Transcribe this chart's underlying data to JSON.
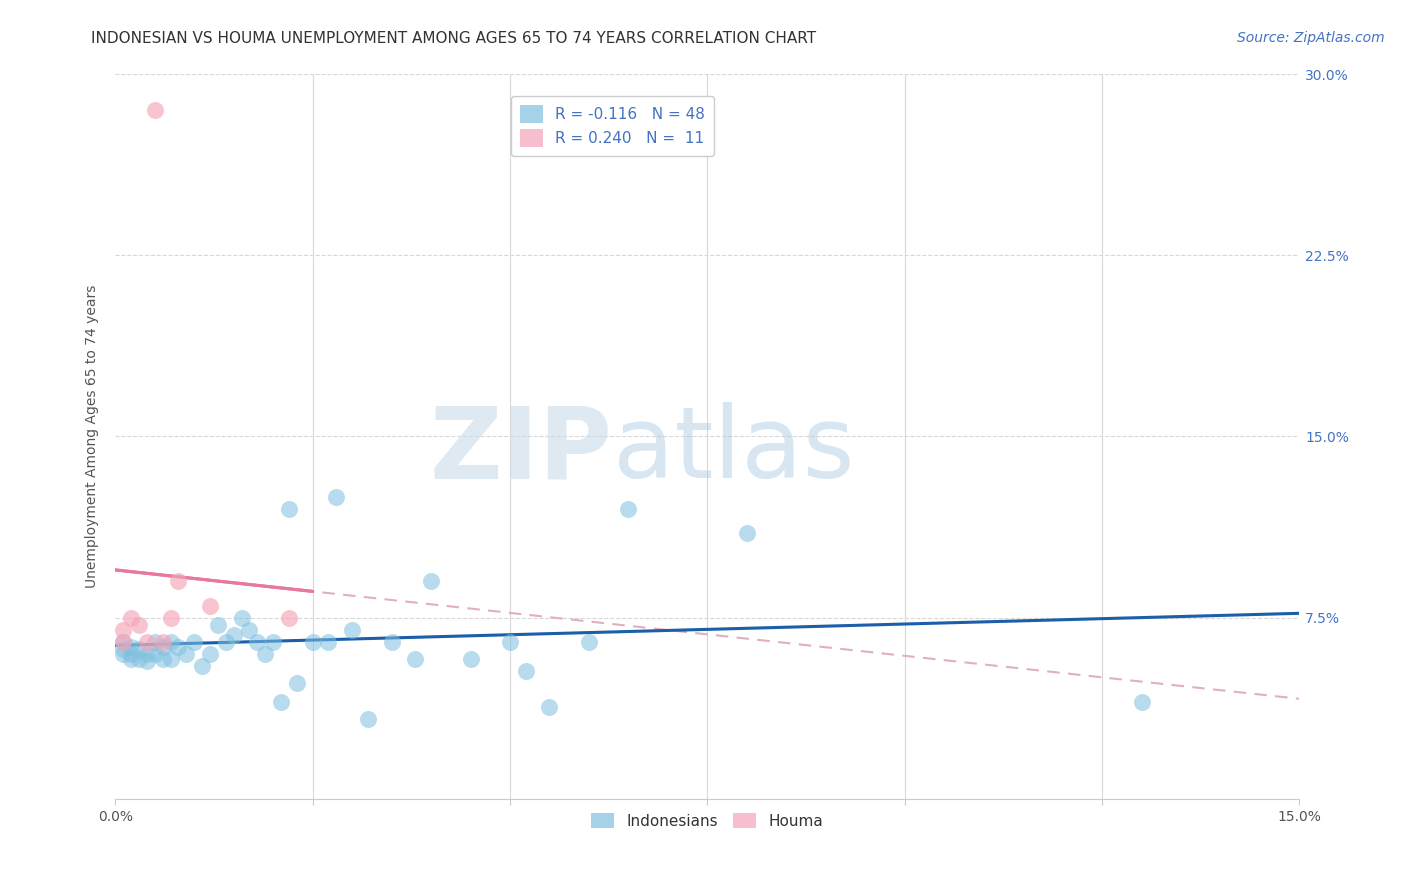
{
  "title": "INDONESIAN VS HOUMA UNEMPLOYMENT AMONG AGES 65 TO 74 YEARS CORRELATION CHART",
  "source": "Source: ZipAtlas.com",
  "ylabel": "Unemployment Among Ages 65 to 74 years",
  "xlim": [
    0.0,
    0.15
  ],
  "ylim": [
    0.0,
    0.3
  ],
  "yticks": [
    0.0,
    0.075,
    0.15,
    0.225,
    0.3
  ],
  "ytick_labels": [
    "",
    "7.5%",
    "15.0%",
    "22.5%",
    "30.0%"
  ],
  "xticks": [
    0.0,
    0.025,
    0.05,
    0.075,
    0.1,
    0.125,
    0.15
  ],
  "xtick_labels": [
    "0.0%",
    "",
    "",
    "",
    "",
    "",
    "15.0%"
  ],
  "indonesian_color": "#7fbfdf",
  "houma_color": "#f4a5b8",
  "indonesian_line_color": "#1a5fa8",
  "houma_line_color": "#e8799a",
  "houma_dashed_color": "#e0b0c0",
  "background_color": "#ffffff",
  "grid_color": "#d8d8d8",
  "R_indonesian": -0.116,
  "N_indonesian": 48,
  "R_houma": 0.24,
  "N_houma": 11,
  "watermark_zip": "ZIP",
  "watermark_atlas": "atlas",
  "title_fontsize": 11,
  "axis_label_fontsize": 10,
  "tick_fontsize": 10,
  "legend_fontsize": 11,
  "source_fontsize": 10,
  "ind_x": [
    0.001,
    0.001,
    0.001,
    0.002,
    0.002,
    0.002,
    0.003,
    0.003,
    0.004,
    0.004,
    0.005,
    0.005,
    0.006,
    0.006,
    0.007,
    0.007,
    0.008,
    0.009,
    0.01,
    0.011,
    0.012,
    0.013,
    0.014,
    0.015,
    0.016,
    0.017,
    0.018,
    0.019,
    0.02,
    0.021,
    0.022,
    0.023,
    0.025,
    0.027,
    0.028,
    0.03,
    0.032,
    0.035,
    0.038,
    0.04,
    0.045,
    0.05,
    0.052,
    0.055,
    0.06,
    0.065,
    0.08,
    0.13
  ],
  "ind_y": [
    0.062,
    0.065,
    0.06,
    0.063,
    0.06,
    0.058,
    0.062,
    0.058,
    0.06,
    0.057,
    0.065,
    0.06,
    0.063,
    0.058,
    0.065,
    0.058,
    0.063,
    0.06,
    0.065,
    0.055,
    0.06,
    0.072,
    0.065,
    0.068,
    0.075,
    0.07,
    0.065,
    0.06,
    0.065,
    0.04,
    0.12,
    0.048,
    0.065,
    0.065,
    0.125,
    0.07,
    0.033,
    0.065,
    0.058,
    0.09,
    0.058,
    0.065,
    0.053,
    0.038,
    0.065,
    0.12,
    0.11,
    0.04
  ],
  "hom_x": [
    0.001,
    0.001,
    0.002,
    0.003,
    0.004,
    0.005,
    0.006,
    0.007,
    0.008,
    0.012,
    0.022
  ],
  "hom_y": [
    0.065,
    0.07,
    0.075,
    0.072,
    0.065,
    0.285,
    0.065,
    0.075,
    0.09,
    0.08,
    0.075
  ]
}
